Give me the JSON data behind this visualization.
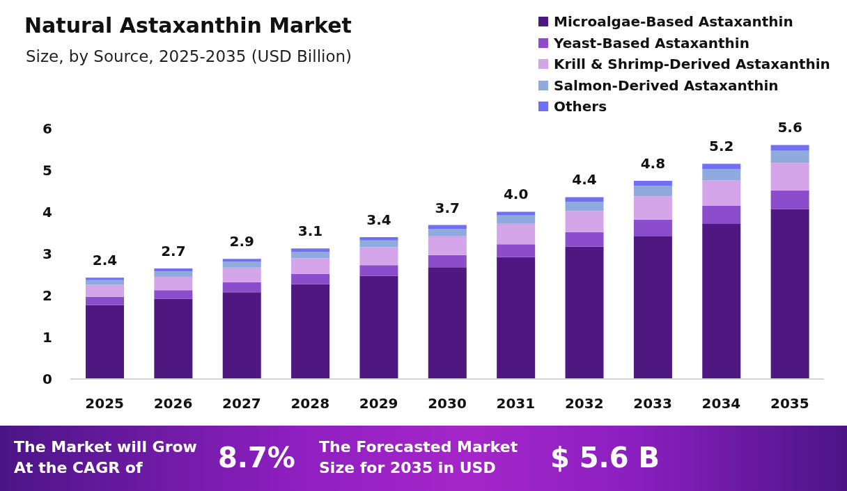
{
  "chart_data": {
    "type": "bar",
    "title": "Natural Astaxanthin Market",
    "subtitle": "Size, by Source, 2025-2035 (USD Billion)",
    "categories": [
      "2025",
      "2026",
      "2027",
      "2028",
      "2029",
      "2030",
      "2031",
      "2032",
      "2033",
      "2034",
      "2035"
    ],
    "series": [
      {
        "name": "Microalgae-Based Astaxanthin",
        "color": "#4f1780",
        "values": [
          1.77,
          1.92,
          2.08,
          2.27,
          2.47,
          2.68,
          2.92,
          3.17,
          3.43,
          3.73,
          4.07
        ]
      },
      {
        "name": "Yeast-Based Astaxanthin",
        "color": "#8b4dcc",
        "values": [
          0.2,
          0.21,
          0.24,
          0.25,
          0.26,
          0.29,
          0.31,
          0.35,
          0.39,
          0.42,
          0.45
        ]
      },
      {
        "name": "Krill & Shrimp-Derived Astaxanthin",
        "color": "#d4a5e8",
        "values": [
          0.29,
          0.32,
          0.35,
          0.37,
          0.43,
          0.45,
          0.49,
          0.51,
          0.56,
          0.61,
          0.66
        ]
      },
      {
        "name": "Salmon-Derived Astaxanthin",
        "color": "#8faadc",
        "values": [
          0.11,
          0.13,
          0.14,
          0.15,
          0.16,
          0.18,
          0.2,
          0.22,
          0.25,
          0.27,
          0.29
        ]
      },
      {
        "name": "Others",
        "color": "#7070f0",
        "values": [
          0.06,
          0.07,
          0.07,
          0.09,
          0.08,
          0.09,
          0.09,
          0.11,
          0.12,
          0.13,
          0.14
        ]
      }
    ],
    "stacked": true,
    "ylim": [
      0,
      6
    ],
    "yticks": [
      0,
      1,
      2,
      3,
      4,
      5,
      6
    ],
    "totals": [
      "2.4",
      "2.7",
      "2.9",
      "3.1",
      "3.4",
      "3.7",
      "4.0",
      "4.4",
      "4.8",
      "5.2",
      "5.6"
    ],
    "legend": "top right",
    "annotations": [
      "The Market will Grow At the CAGR of",
      "8.7%",
      "The Forecasted Market Size for 2035 in USD",
      "$ 5.6 B"
    ]
  }
}
